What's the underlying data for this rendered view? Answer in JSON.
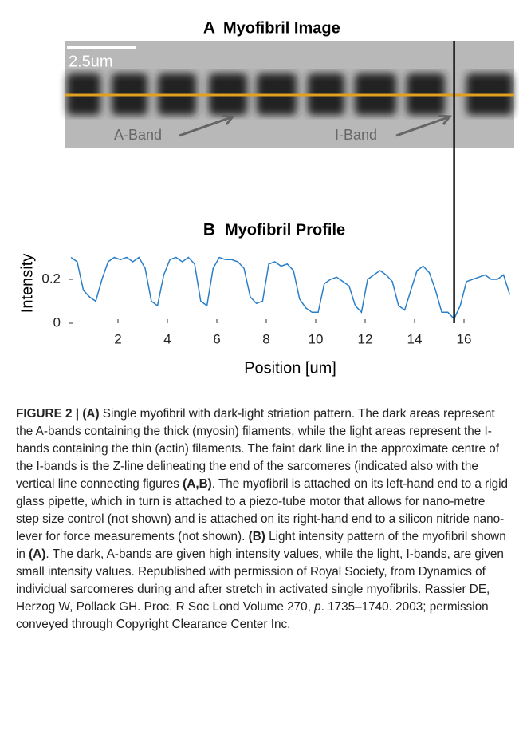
{
  "panel_a": {
    "label": "A",
    "title": "Myofibril Image",
    "scale_bar": "2.5um",
    "annotations": [
      "A-Band",
      "I-Band"
    ]
  },
  "chart_data": {
    "type": "line",
    "panel_label": "B",
    "title": "Myofibril Profile",
    "x_label": "Position [um]",
    "y_label": "Intensity",
    "color": "#2a7fc9",
    "x": [
      0.1,
      0.35,
      0.6,
      0.85,
      1.1,
      1.35,
      1.6,
      1.85,
      2.1,
      2.35,
      2.6,
      2.85,
      3.1,
      3.35,
      3.6,
      3.85,
      4.1,
      4.35,
      4.6,
      4.85,
      5.1,
      5.35,
      5.6,
      5.85,
      6.1,
      6.35,
      6.6,
      6.85,
      7.1,
      7.35,
      7.6,
      7.85,
      8.1,
      8.35,
      8.6,
      8.85,
      9.1,
      9.35,
      9.6,
      9.85,
      10.1,
      10.35,
      10.6,
      10.85,
      11.1,
      11.35,
      11.6,
      11.85,
      12.1,
      12.35,
      12.6,
      12.85,
      13.1,
      13.35,
      13.6,
      13.85,
      14.1,
      14.35,
      14.6,
      14.85,
      15.1,
      15.35,
      15.6,
      15.85,
      16.1,
      16.35,
      16.6,
      16.85,
      17.1,
      17.35,
      17.6,
      17.85
    ],
    "values": [
      0.3,
      0.28,
      0.15,
      0.12,
      0.1,
      0.2,
      0.28,
      0.3,
      0.29,
      0.3,
      0.28,
      0.3,
      0.25,
      0.1,
      0.08,
      0.22,
      0.29,
      0.3,
      0.28,
      0.3,
      0.27,
      0.1,
      0.08,
      0.25,
      0.3,
      0.29,
      0.29,
      0.28,
      0.25,
      0.12,
      0.09,
      0.1,
      0.27,
      0.28,
      0.26,
      0.27,
      0.24,
      0.11,
      0.07,
      0.05,
      0.05,
      0.18,
      0.2,
      0.21,
      0.19,
      0.17,
      0.08,
      0.05,
      0.2,
      0.22,
      0.24,
      0.22,
      0.19,
      0.08,
      0.06,
      0.15,
      0.24,
      0.26,
      0.23,
      0.15,
      0.05,
      0.05,
      0.02,
      0.08,
      0.19,
      0.2,
      0.21,
      0.22,
      0.2,
      0.2,
      0.22,
      0.13
    ],
    "xlim": [
      0,
      18
    ],
    "ylim": [
      0,
      0.36
    ],
    "xticks": [
      2,
      4,
      6,
      8,
      10,
      12,
      14,
      16
    ],
    "yticks": [
      0,
      0.2
    ],
    "vline_x": 15.6
  },
  "caption": [
    {
      "text": "FIGURE 2 | (A)",
      "bold": true
    },
    {
      "text": " Single myofibril with dark-light striation pattern. The dark areas represent the A-bands containing the thick (myosin) filaments, while the light areas represent the I-bands containing the thin (actin) filaments. The faint dark line in the approximate centre of the I-bands is the Z-line delineating the end of the sarcomeres (indicated also with the vertical line connecting figures "
    },
    {
      "text": "(A,B)",
      "bold": true
    },
    {
      "text": ". The myofibril is attached on its left-hand end to a rigid glass pipette, which in turn is attached to a piezo-tube motor that allows for nano-metre step size control (not shown) and is attached on its right-hand end to a silicon nitride nano-lever for force measurements (not shown). "
    },
    {
      "text": "(B)",
      "bold": true
    },
    {
      "text": " Light intensity pattern of the myofibril shown in "
    },
    {
      "text": "(A)",
      "bold": true
    },
    {
      "text": ". The dark, A-bands are given high intensity values, while the light, I-bands, are given small intensity values. Republished with permission of Royal Society, from Dynamics of individual sarcomeres during and after stretch in activated single myofibrils. Rassier DE, Herzog W, Pollack GH. Proc. R Soc Lond Volume 270, "
    },
    {
      "text": "p",
      "italic": true
    },
    {
      "text": ". 1735–1740. 2003; permission conveyed through Copyright Clearance Center Inc."
    }
  ]
}
